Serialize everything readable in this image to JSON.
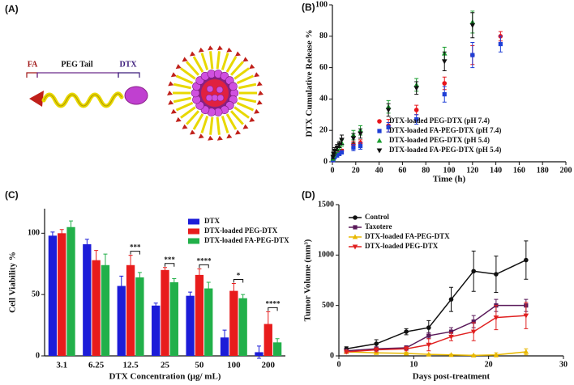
{
  "diagram": {
    "panel": "(A)",
    "labels": [
      "FA",
      "PEG Tail",
      "DTX"
    ]
  },
  "chart_data": [
    {
      "type": "scatter",
      "panel": "(B)",
      "x_label": "Time (h)",
      "y_label": "DTX Cumulative Release %",
      "xlim": [
        0,
        200
      ],
      "xticks": [
        0,
        20,
        40,
        60,
        80,
        100,
        120,
        140,
        160,
        180,
        200
      ],
      "ylim": [
        0,
        100
      ],
      "yticks": [
        0,
        20,
        40,
        60,
        80,
        100
      ],
      "legend": "lower right",
      "series": [
        {
          "name": "DTX-loaded PEG-DTX (pH 7.4)",
          "color": "#e8141b",
          "marker": "circle",
          "x": [
            0.5,
            1,
            2,
            4,
            6,
            8,
            18,
            24,
            48,
            72,
            96,
            120,
            144
          ],
          "values": [
            1,
            3,
            4,
            5,
            6,
            7,
            11,
            12,
            23,
            33,
            50,
            68,
            80
          ],
          "errors": [
            0.5,
            1,
            1,
            1,
            1,
            1,
            2,
            2,
            4,
            3,
            4,
            6,
            3
          ]
        },
        {
          "name": "DTX-loaded FA-PEG-DTX (pH 7.4)",
          "color": "#1f3fd6",
          "marker": "square",
          "x": [
            0.5,
            1,
            2,
            4,
            6,
            8,
            18,
            24,
            48,
            72,
            96,
            120,
            144
          ],
          "values": [
            1,
            2,
            3,
            4,
            5,
            6,
            9,
            10,
            22,
            27,
            43,
            68,
            75
          ],
          "errors": [
            0.5,
            1,
            1,
            1,
            1,
            1,
            2,
            2,
            3,
            3,
            5,
            8,
            5
          ]
        },
        {
          "name": "DTX-loaded PEG-DTX (pH 5.4)",
          "color": "#1a9e2f",
          "marker": "triangle-up",
          "x": [
            0.5,
            1,
            2,
            4,
            6,
            8,
            18,
            24,
            48,
            72,
            96,
            120
          ],
          "values": [
            2,
            4,
            6,
            8,
            10,
            12,
            17,
            20,
            35,
            49,
            69,
            89
          ],
          "errors": [
            1,
            1,
            2,
            2,
            2,
            2,
            3,
            3,
            4,
            4,
            4,
            7
          ]
        },
        {
          "name": "DTX-loaded FA-PEG-DTX (pH 5.4)",
          "color": "#111111",
          "marker": "triangle-down",
          "x": [
            0.5,
            1,
            2,
            4,
            6,
            8,
            18,
            24,
            48,
            72,
            96,
            120
          ],
          "values": [
            3,
            5,
            7,
            9,
            11,
            14,
            15,
            18,
            33,
            47,
            64,
            87
          ],
          "errors": [
            1,
            1,
            2,
            2,
            2,
            3,
            3,
            3,
            4,
            4,
            6,
            8
          ]
        }
      ]
    },
    {
      "type": "bar",
      "panel": "(C)",
      "x_label": "DTX Concentration (μg/ mL)",
      "y_label": "Cell Viability %",
      "categories": [
        "3.1",
        "6.25",
        "12.5",
        "25",
        "50",
        "100",
        "200"
      ],
      "ylim": [
        0,
        120
      ],
      "yticks": [
        0,
        50,
        100
      ],
      "legend": "upper right",
      "series": [
        {
          "name": "DTX",
          "color": "#1c1cd8",
          "values": [
            98,
            91,
            57,
            41,
            49,
            15,
            3
          ],
          "errors": [
            3,
            4,
            8,
            2,
            3,
            6,
            5
          ]
        },
        {
          "name": "DTX-loaded PEG-DTX",
          "color": "#e81c1c",
          "values": [
            100,
            78,
            74,
            70,
            66,
            53,
            26
          ],
          "errors": [
            3,
            8,
            8,
            2,
            5,
            6,
            10
          ]
        },
        {
          "name": "DTX-loaded FA-PEG-DTX",
          "color": "#22b04a",
          "values": [
            105,
            74,
            64,
            60,
            55,
            47,
            11
          ],
          "errors": [
            5,
            9,
            4,
            3,
            5,
            3,
            3
          ]
        }
      ],
      "annotations": [
        {
          "text": "***",
          "category": "12.5"
        },
        {
          "text": "***",
          "category": "25"
        },
        {
          "text": "****",
          "category": "50"
        },
        {
          "text": "*",
          "category": "100"
        },
        {
          "text": "****",
          "category": "200"
        }
      ]
    },
    {
      "type": "line",
      "panel": "(D)",
      "x_label": "Days post-treatment",
      "y_label": "Tumor Volume (mm³)",
      "xlim": [
        0,
        30
      ],
      "xticks": [
        0,
        10,
        20,
        30
      ],
      "ylim": [
        0,
        1500
      ],
      "yticks": [
        0,
        500,
        1000,
        1500
      ],
      "legend": "upper left",
      "series": [
        {
          "name": "Control",
          "color": "#111111",
          "marker": "circle",
          "x": [
            1,
            5,
            9,
            12,
            15,
            18,
            21,
            25
          ],
          "values": [
            70,
            120,
            240,
            280,
            560,
            840,
            810,
            950
          ],
          "errors": [
            20,
            40,
            30,
            70,
            120,
            200,
            180,
            190
          ]
        },
        {
          "name": "Taxotere",
          "color": "#5a1a5a",
          "marker": "square",
          "x": [
            1,
            5,
            9,
            12,
            15,
            18,
            21,
            25
          ],
          "values": [
            50,
            70,
            80,
            200,
            240,
            340,
            500,
            500
          ],
          "errors": [
            15,
            20,
            20,
            30,
            40,
            60,
            60,
            60
          ]
        },
        {
          "name": "DTX-loaded FA-PEG-DTX",
          "color": "#e8b800",
          "marker": "triangle-up",
          "x": [
            1,
            5,
            9,
            12,
            15,
            18,
            21,
            25
          ],
          "values": [
            40,
            30,
            25,
            15,
            10,
            5,
            10,
            40
          ],
          "errors": [
            10,
            10,
            10,
            5,
            5,
            5,
            20,
            30
          ]
        },
        {
          "name": "DTX-loaded PEG-DTX",
          "color": "#e02020",
          "marker": "triangle-down",
          "x": [
            1,
            5,
            9,
            12,
            15,
            18,
            21,
            25
          ],
          "values": [
            40,
            60,
            70,
            110,
            190,
            240,
            380,
            400
          ],
          "errors": [
            15,
            20,
            20,
            60,
            40,
            90,
            120,
            130
          ]
        }
      ]
    }
  ]
}
